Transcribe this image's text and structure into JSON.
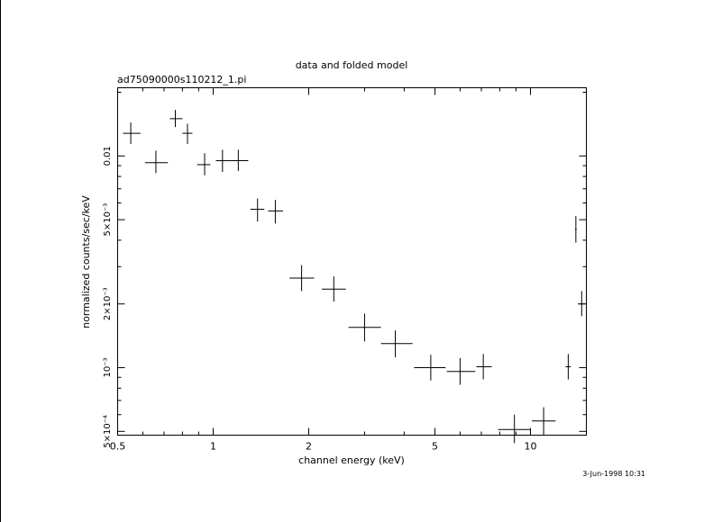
{
  "chart_data": {
    "type": "scatter",
    "title": "data and folded model",
    "subtitle": "ad75090000s110212_1.pi",
    "xlabel": "channel energy (keV)",
    "ylabel": "normalized counts/sec/keV",
    "x_scale": "log",
    "y_scale": "log",
    "xlim": [
      0.5,
      15.0
    ],
    "ylim": [
      0.00048,
      0.021
    ],
    "x_major_ticks": [
      0.5,
      1,
      2,
      5,
      10
    ],
    "x_tick_labels": [
      "0.5",
      "1",
      "2",
      "5",
      "10"
    ],
    "y_major_ticks": [
      0.0005,
      0.001,
      0.002,
      0.005,
      0.01
    ],
    "y_tick_labels": [
      "5×10⁻⁴",
      "10⁻³",
      "2×10⁻³",
      "5×10⁻³",
      "0.01"
    ],
    "grid": false,
    "legend": "none",
    "points": [
      {
        "x": 0.55,
        "xlo": 0.52,
        "xhi": 0.59,
        "y": 0.0128,
        "ylo": 0.0114,
        "yhi": 0.0144
      },
      {
        "x": 0.66,
        "xlo": 0.61,
        "xhi": 0.72,
        "y": 0.0093,
        "ylo": 0.0083,
        "yhi": 0.0106
      },
      {
        "x": 0.76,
        "xlo": 0.73,
        "xhi": 0.8,
        "y": 0.015,
        "ylo": 0.0137,
        "yhi": 0.0165
      },
      {
        "x": 0.83,
        "xlo": 0.8,
        "xhi": 0.86,
        "y": 0.0128,
        "ylo": 0.0114,
        "yhi": 0.0142
      },
      {
        "x": 0.94,
        "xlo": 0.89,
        "xhi": 0.98,
        "y": 0.0091,
        "ylo": 0.0081,
        "yhi": 0.0103
      },
      {
        "x": 1.07,
        "xlo": 1.02,
        "xhi": 1.12,
        "y": 0.0095,
        "ylo": 0.0084,
        "yhi": 0.0107
      },
      {
        "x": 1.2,
        "xlo": 1.12,
        "xhi": 1.29,
        "y": 0.0095,
        "ylo": 0.0085,
        "yhi": 0.0107
      },
      {
        "x": 1.38,
        "xlo": 1.31,
        "xhi": 1.45,
        "y": 0.0056,
        "ylo": 0.0049,
        "yhi": 0.0063
      },
      {
        "x": 1.57,
        "xlo": 1.49,
        "xhi": 1.66,
        "y": 0.0055,
        "ylo": 0.0048,
        "yhi": 0.0062
      },
      {
        "x": 1.9,
        "xlo": 1.74,
        "xhi": 2.08,
        "y": 0.00265,
        "ylo": 0.0023,
        "yhi": 0.00305
      },
      {
        "x": 2.4,
        "xlo": 2.2,
        "xhi": 2.62,
        "y": 0.00235,
        "ylo": 0.00205,
        "yhi": 0.0027
      },
      {
        "x": 3.0,
        "xlo": 2.67,
        "xhi": 3.38,
        "y": 0.00155,
        "ylo": 0.00133,
        "yhi": 0.0018
      },
      {
        "x": 3.75,
        "xlo": 3.38,
        "xhi": 4.25,
        "y": 0.0013,
        "ylo": 0.00112,
        "yhi": 0.0015
      },
      {
        "x": 4.85,
        "xlo": 4.3,
        "xhi": 5.4,
        "y": 0.001,
        "ylo": 0.00087,
        "yhi": 0.00115
      },
      {
        "x": 6.0,
        "xlo": 5.45,
        "xhi": 6.7,
        "y": 0.00096,
        "ylo": 0.00083,
        "yhi": 0.00111
      },
      {
        "x": 7.1,
        "xlo": 6.75,
        "xhi": 7.55,
        "y": 0.00101,
        "ylo": 0.00088,
        "yhi": 0.00116
      },
      {
        "x": 8.9,
        "xlo": 7.9,
        "xhi": 10.0,
        "y": 0.00051,
        "ylo": 0.00044,
        "yhi": 0.0006
      },
      {
        "x": 11.0,
        "xlo": 10.1,
        "xhi": 12.0,
        "y": 0.00056,
        "ylo": 0.00048,
        "yhi": 0.00065
      },
      {
        "x": 13.15,
        "xlo": 12.9,
        "xhi": 13.4,
        "y": 0.00101,
        "ylo": 0.00088,
        "yhi": 0.00116
      },
      {
        "x": 13.9,
        "xlo": 13.82,
        "xhi": 13.98,
        "y": 0.0045,
        "ylo": 0.0039,
        "yhi": 0.0052
      },
      {
        "x": 14.5,
        "xlo": 14.1,
        "xhi": 14.85,
        "y": 0.002,
        "ylo": 0.00175,
        "yhi": 0.0023
      }
    ],
    "footer_text": "3-Jun-1998 10:31"
  }
}
